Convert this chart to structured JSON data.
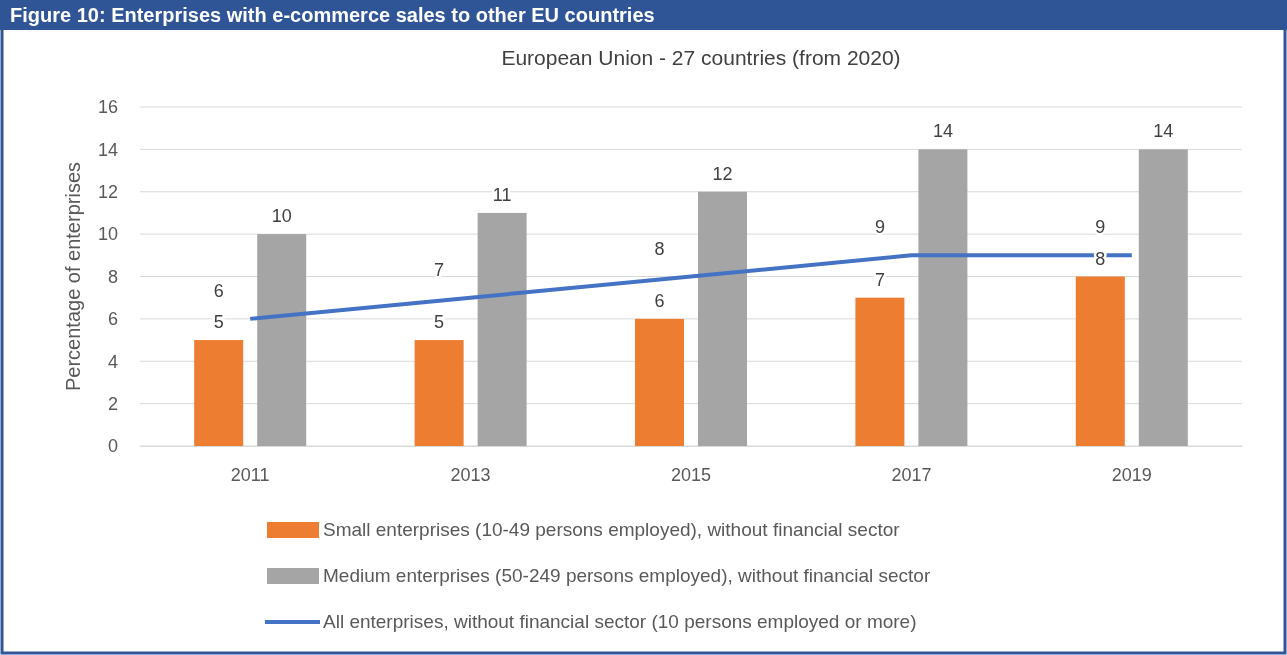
{
  "chart_data": {
    "type": "bar",
    "title": "Figure 10: Enterprises with e-commerce sales to other EU countries",
    "subtitle": "European Union - 27 countries (from 2020)",
    "ylabel": "Percentage of enterprises",
    "categories": [
      "2011",
      "2013",
      "2015",
      "2017",
      "2019"
    ],
    "series": [
      {
        "name": "Small enterprises (10-49 persons employed), without financial sector",
        "color": "#ed7d31",
        "values": [
          5,
          5,
          6,
          7,
          8
        ]
      },
      {
        "name": "Medium enterprises (50-249 persons employed), without financial sector",
        "color": "#a5a5a5",
        "values": [
          10,
          11,
          12,
          14,
          14
        ]
      },
      {
        "name": "All enterprises, without financial sector (10 persons employed or more)",
        "color": "#4472c4",
        "type": "line",
        "values": [
          6,
          7,
          8,
          9,
          9
        ]
      }
    ],
    "ylim": [
      0,
      16
    ],
    "yticks": [
      0,
      2,
      4,
      6,
      8,
      10,
      12,
      14,
      16
    ],
    "grid": "y",
    "data_labels": true,
    "legend": "bottom",
    "marker": "none"
  }
}
